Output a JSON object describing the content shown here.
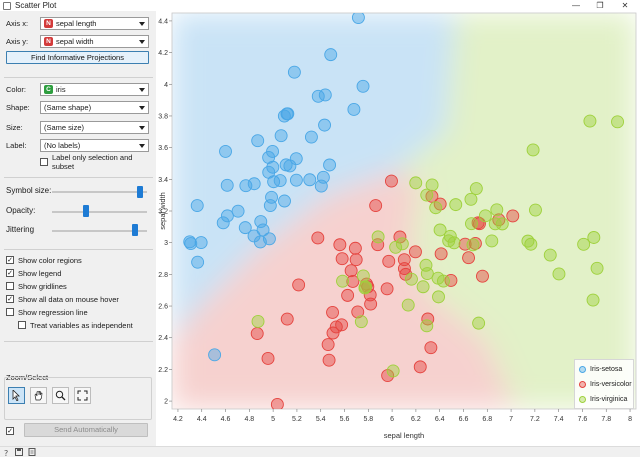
{
  "window": {
    "title": "Scatter Plot"
  },
  "controls": {
    "axis_x": {
      "label": "Axis x:",
      "badge": "N",
      "value": "sepal length"
    },
    "axis_y": {
      "label": "Axis y:",
      "badge": "N",
      "value": "sepal width"
    },
    "find_projections": "Find Informative Projections",
    "color": {
      "label": "Color:",
      "badge": "C",
      "value": "iris"
    },
    "shape": {
      "label": "Shape:",
      "value": "(Same shape)"
    },
    "size": {
      "label": "Size:",
      "value": "(Same size)"
    },
    "label": {
      "label": "Label:",
      "value": "(No labels)"
    },
    "label_only_selection": "Label only selection and subset",
    "symbol_size": {
      "label": "Symbol size:",
      "level": 0.95
    },
    "opacity": {
      "label": "Opacity:",
      "level": 0.35
    },
    "jittering": {
      "label": "Jittering",
      "level": 0.9
    },
    "show_color_regions": {
      "label": "Show color regions",
      "checked": true
    },
    "show_legend": {
      "label": "Show legend",
      "checked": true
    },
    "show_gridlines": {
      "label": "Show gridlines",
      "checked": false
    },
    "show_all_data": {
      "label": "Show all data on mouse hover",
      "checked": true
    },
    "show_regression": {
      "label": "Show regression line",
      "checked": false
    },
    "treat_independent": {
      "label": "Treat variables as independent",
      "checked": false
    },
    "zoom_select_title": "Zoom/Select",
    "send_automatically": "Send Automatically",
    "send_auto_checked": true
  },
  "colors": {
    "setosa": "#4aa7e6",
    "versicolor": "#e5433e",
    "virginica": "#9ed13b",
    "badge_numeric": "#d33b3b",
    "badge_categorical": "#2e9e3f"
  },
  "icons": [
    "pointer-icon",
    "hand-pan-icon",
    "zoom-icon",
    "zoom-reset-icon",
    "help-icon",
    "save-icon",
    "report-icon"
  ],
  "chart_data": {
    "type": "scatter",
    "xlabel": "sepal length",
    "ylabel": "sepal width",
    "xlim": [
      4.15,
      8.05
    ],
    "ylim": [
      1.95,
      4.45
    ],
    "x_ticks": [
      "4.2",
      "4.4",
      "4.6",
      "4.8",
      "5",
      "5.2",
      "5.4",
      "5.6",
      "5.8",
      "6",
      "6.2",
      "6.4",
      "6.6",
      "6.8",
      "7",
      "7.2",
      "7.4",
      "7.6",
      "7.8",
      "8"
    ],
    "y_ticks": [
      "2",
      "2.2",
      "2.4",
      "2.6",
      "2.8",
      "3",
      "3.2",
      "3.4",
      "3.6",
      "3.8",
      "4",
      "4.2",
      "4.4"
    ],
    "legend": [
      "Iris-setosa",
      "Iris-versicolor",
      "Iris-virginica"
    ],
    "series": [
      {
        "name": "Iris-setosa",
        "points": [
          [
            4.3,
            3.0
          ],
          [
            4.4,
            2.9
          ],
          [
            4.4,
            3.0
          ],
          [
            4.4,
            3.2
          ],
          [
            4.5,
            2.3
          ],
          [
            4.6,
            3.1
          ],
          [
            4.6,
            3.4
          ],
          [
            4.6,
            3.6
          ],
          [
            4.6,
            3.2
          ],
          [
            4.7,
            3.2
          ],
          [
            4.8,
            3.4
          ],
          [
            4.8,
            3.0
          ],
          [
            4.8,
            3.1
          ],
          [
            4.8,
            3.4
          ],
          [
            4.9,
            3.0
          ],
          [
            4.9,
            3.1
          ],
          [
            4.9,
            3.6
          ],
          [
            5.0,
            3.6
          ],
          [
            5.0,
            3.4
          ],
          [
            5.0,
            3.0
          ],
          [
            5.0,
            3.3
          ],
          [
            5.0,
            3.5
          ],
          [
            5.0,
            3.2
          ],
          [
            5.0,
            3.5
          ],
          [
            5.1,
            3.5
          ],
          [
            5.1,
            3.8
          ],
          [
            5.1,
            3.7
          ],
          [
            5.1,
            3.3
          ],
          [
            5.1,
            3.4
          ],
          [
            5.1,
            3.8
          ],
          [
            5.1,
            3.5
          ],
          [
            5.1,
            3.8
          ],
          [
            5.2,
            3.5
          ],
          [
            5.2,
            3.4
          ],
          [
            5.2,
            4.1
          ],
          [
            5.3,
            3.7
          ],
          [
            5.4,
            3.9
          ],
          [
            5.4,
            3.7
          ],
          [
            5.4,
            3.9
          ],
          [
            5.4,
            3.4
          ],
          [
            5.4,
            3.4
          ],
          [
            5.5,
            4.2
          ],
          [
            5.5,
            3.5
          ],
          [
            5.7,
            4.4
          ],
          [
            5.7,
            3.8
          ],
          [
            5.8,
            4.0
          ],
          [
            4.3,
            3.0
          ],
          [
            5.0,
            3.4
          ],
          [
            4.9,
            3.1
          ],
          [
            5.3,
            3.4
          ]
        ]
      },
      {
        "name": "Iris-versicolor",
        "points": [
          [
            4.9,
            2.4
          ],
          [
            5.0,
            2.0
          ],
          [
            5.0,
            2.3
          ],
          [
            5.1,
            2.5
          ],
          [
            5.2,
            2.7
          ],
          [
            5.4,
            3.0
          ],
          [
            5.5,
            2.3
          ],
          [
            5.5,
            2.4
          ],
          [
            5.5,
            2.4
          ],
          [
            5.5,
            2.5
          ],
          [
            5.5,
            2.6
          ],
          [
            5.6,
            2.9
          ],
          [
            5.6,
            3.0
          ],
          [
            5.6,
            2.5
          ],
          [
            5.6,
            2.7
          ],
          [
            5.7,
            2.8
          ],
          [
            5.7,
            2.6
          ],
          [
            5.7,
            3.0
          ],
          [
            5.7,
            2.9
          ],
          [
            5.7,
            2.8
          ],
          [
            5.8,
            2.7
          ],
          [
            5.8,
            2.7
          ],
          [
            5.8,
            2.6
          ],
          [
            5.9,
            3.0
          ],
          [
            5.9,
            3.2
          ],
          [
            6.0,
            2.2
          ],
          [
            6.0,
            2.9
          ],
          [
            6.0,
            2.7
          ],
          [
            6.0,
            3.4
          ],
          [
            6.1,
            2.8
          ],
          [
            6.1,
            2.9
          ],
          [
            6.1,
            3.0
          ],
          [
            6.1,
            2.8
          ],
          [
            6.2,
            2.2
          ],
          [
            6.2,
            2.9
          ],
          [
            6.3,
            3.3
          ],
          [
            6.3,
            2.5
          ],
          [
            6.3,
            2.3
          ],
          [
            6.4,
            3.2
          ],
          [
            6.4,
            2.9
          ],
          [
            6.5,
            2.8
          ],
          [
            6.6,
            2.9
          ],
          [
            6.6,
            3.0
          ],
          [
            6.7,
            3.1
          ],
          [
            6.7,
            3.0
          ],
          [
            6.7,
            3.1
          ],
          [
            6.8,
            2.8
          ],
          [
            6.9,
            3.1
          ],
          [
            7.0,
            3.2
          ],
          [
            5.8,
            2.7
          ]
        ]
      },
      {
        "name": "Iris-virginica",
        "points": [
          [
            4.9,
            2.5
          ],
          [
            5.6,
            2.8
          ],
          [
            5.7,
            2.5
          ],
          [
            5.8,
            2.8
          ],
          [
            5.8,
            2.7
          ],
          [
            5.8,
            2.7
          ],
          [
            5.9,
            3.0
          ],
          [
            6.0,
            2.2
          ],
          [
            6.0,
            3.0
          ],
          [
            6.1,
            3.0
          ],
          [
            6.1,
            2.6
          ],
          [
            6.2,
            2.8
          ],
          [
            6.2,
            3.4
          ],
          [
            6.3,
            3.3
          ],
          [
            6.3,
            2.9
          ],
          [
            6.3,
            2.7
          ],
          [
            6.3,
            2.8
          ],
          [
            6.3,
            3.4
          ],
          [
            6.3,
            2.5
          ],
          [
            6.4,
            2.7
          ],
          [
            6.4,
            3.2
          ],
          [
            6.4,
            2.8
          ],
          [
            6.4,
            3.1
          ],
          [
            6.4,
            2.8
          ],
          [
            6.5,
            3.0
          ],
          [
            6.5,
            3.0
          ],
          [
            6.5,
            3.2
          ],
          [
            6.5,
            3.0
          ],
          [
            6.7,
            2.5
          ],
          [
            6.7,
            3.3
          ],
          [
            6.7,
            3.1
          ],
          [
            6.7,
            3.3
          ],
          [
            6.7,
            3.0
          ],
          [
            6.8,
            3.2
          ],
          [
            6.8,
            3.0
          ],
          [
            6.9,
            3.1
          ],
          [
            6.9,
            3.2
          ],
          [
            6.9,
            3.1
          ],
          [
            7.1,
            3.0
          ],
          [
            7.2,
            3.6
          ],
          [
            7.2,
            3.2
          ],
          [
            7.2,
            3.0
          ],
          [
            7.3,
            2.9
          ],
          [
            7.4,
            2.8
          ],
          [
            7.6,
            3.0
          ],
          [
            7.7,
            3.8
          ],
          [
            7.7,
            2.6
          ],
          [
            7.7,
            2.8
          ],
          [
            7.7,
            3.0
          ],
          [
            7.9,
            3.8
          ]
        ]
      }
    ]
  }
}
